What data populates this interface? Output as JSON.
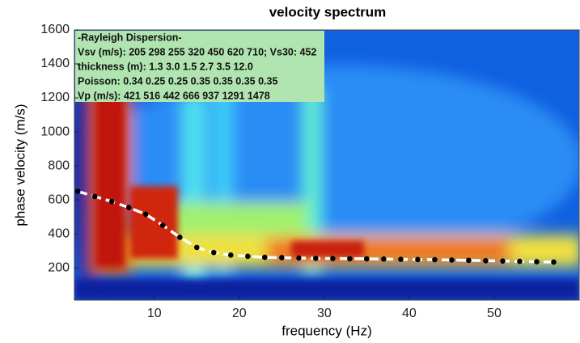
{
  "chart_data": {
    "type": "line",
    "title": "velocity spectrum",
    "x_label": "frequency (Hz)",
    "y_label": "phase velocity (m/s)",
    "xlim": [
      0.6,
      60
    ],
    "ylim": [
      10,
      1600
    ],
    "xticks": [
      10,
      20,
      30,
      40,
      50
    ],
    "yticks": [
      200,
      400,
      600,
      800,
      1000,
      1200,
      1400,
      1600
    ],
    "annotations": [
      "-Rayleigh Dispersion-",
      "Vsv (m/s): 205  298  255  320  450  620  710; Vs30: 452",
      "thickness (m): 1.3    3.0    1.5    2.7    3.5    12.0",
      "Poisson: 0.34  0.25  0.25  0.35  0.35  0.35  0.35",
      "Vp (m/s): 421  516  442  666  937  1291  1478"
    ],
    "x": [
      1,
      3,
      5,
      7,
      9,
      11,
      13,
      15,
      17,
      19,
      21,
      23,
      25,
      27,
      29,
      31,
      33,
      35,
      37,
      39,
      41,
      43,
      45,
      47,
      49,
      51,
      53,
      55,
      57
    ],
    "series": [
      {
        "color": "#ffffff",
        "marker_color": "#000000",
        "values": [
          650,
          620,
          590,
          555,
          515,
          450,
          380,
          320,
          290,
          275,
          268,
          262,
          260,
          258,
          256,
          255,
          254,
          253,
          252,
          250,
          249,
          248,
          246,
          244,
          242,
          240,
          238,
          236,
          234
        ]
      }
    ]
  }
}
